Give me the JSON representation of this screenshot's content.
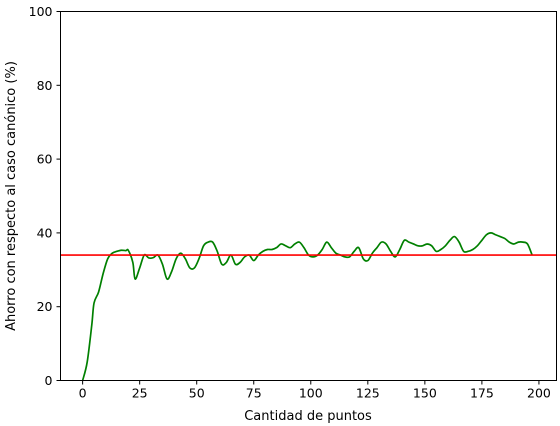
{
  "chart_data": {
    "type": "line",
    "xlabel": "Cantidad de puntos",
    "ylabel": "Ahorro con respecto al caso canónico (%)",
    "xlim": [
      -9.7,
      207.7
    ],
    "ylim": [
      0,
      100
    ],
    "xticks": [
      0,
      25,
      50,
      75,
      100,
      125,
      150,
      175,
      200
    ],
    "yticks": [
      0,
      20,
      40,
      60,
      80,
      100
    ],
    "grid": false,
    "series": [
      {
        "color": "#008000",
        "x": [
          0,
          2,
          4,
          5,
          7,
          9,
          11,
          13,
          15,
          17,
          19,
          20,
          22,
          23,
          25,
          27,
          29,
          31,
          33,
          35,
          37,
          39,
          41,
          43,
          45,
          47,
          49,
          51,
          53,
          55,
          57,
          59,
          61,
          63,
          65,
          67,
          69,
          71,
          73,
          75,
          77,
          79,
          81,
          83,
          85,
          87,
          89,
          91,
          93,
          95,
          97,
          99,
          101,
          103,
          105,
          107,
          109,
          111,
          113,
          115,
          117,
          119,
          121,
          123,
          125,
          127,
          129,
          131,
          133,
          135,
          137,
          139,
          141,
          143,
          145,
          147,
          149,
          151,
          153,
          155,
          157,
          159,
          161,
          163,
          165,
          167,
          169,
          171,
          173,
          175,
          177,
          179,
          181,
          183,
          185,
          187,
          189,
          191,
          193,
          195,
          197
        ],
        "values": [
          0,
          5,
          15,
          21,
          24,
          29,
          33,
          34.5,
          35,
          35.3,
          35.2,
          35.3,
          32,
          27.5,
          30.5,
          34,
          33.2,
          33.3,
          34,
          31.5,
          27.5,
          29.5,
          33,
          34.5,
          33,
          30.5,
          30.5,
          33,
          36.5,
          37.5,
          37.5,
          35,
          31.5,
          32,
          34,
          31.5,
          32,
          33.5,
          34,
          32.5,
          34,
          35,
          35.5,
          35.5,
          36,
          37,
          36.5,
          36,
          37,
          37.5,
          36,
          34,
          33.5,
          34,
          35.5,
          37.5,
          36,
          34.5,
          34,
          33.5,
          33.5,
          35,
          36,
          33,
          32.5,
          34.5,
          36,
          37.5,
          37,
          35,
          33.5,
          35.5,
          38,
          37.5,
          37,
          36.5,
          36.5,
          37,
          36.5,
          35,
          35.5,
          36.5,
          38,
          39,
          37.5,
          35,
          35,
          35.5,
          36.5,
          38,
          39.5,
          40,
          39.5,
          39,
          38.5,
          37.5,
          37,
          37.5,
          37.5,
          37,
          34
        ]
      },
      {
        "color": "#ff0000",
        "x": [
          -9.7,
          207.7
        ],
        "values": [
          34,
          34
        ]
      }
    ]
  }
}
